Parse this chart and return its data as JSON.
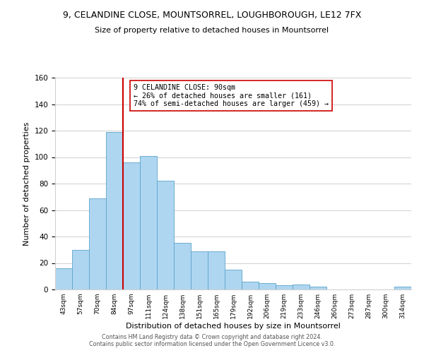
{
  "title": "9, CELANDINE CLOSE, MOUNTSORREL, LOUGHBOROUGH, LE12 7FX",
  "subtitle": "Size of property relative to detached houses in Mountsorrel",
  "xlabel": "Distribution of detached houses by size in Mountsorrel",
  "ylabel": "Number of detached properties",
  "footer_line1": "Contains HM Land Registry data © Crown copyright and database right 2024.",
  "footer_line2": "Contains public sector information licensed under the Open Government Licence v3.0.",
  "bin_labels": [
    "43sqm",
    "57sqm",
    "70sqm",
    "84sqm",
    "97sqm",
    "111sqm",
    "124sqm",
    "138sqm",
    "151sqm",
    "165sqm",
    "179sqm",
    "192sqm",
    "206sqm",
    "219sqm",
    "233sqm",
    "246sqm",
    "260sqm",
    "273sqm",
    "287sqm",
    "300sqm",
    "314sqm"
  ],
  "bar_heights": [
    16,
    30,
    69,
    119,
    96,
    101,
    82,
    35,
    29,
    29,
    15,
    6,
    5,
    3,
    4,
    2,
    0,
    0,
    0,
    0,
    2
  ],
  "bar_color": "#aed6f1",
  "bar_edge_color": "#5ba3c9",
  "vline_x_index": 4,
  "vline_color": "#cc0000",
  "annotation_text": "9 CELANDINE CLOSE: 90sqm\n← 26% of detached houses are smaller (161)\n74% of semi-detached houses are larger (459) →",
  "annotation_box_edgecolor": "#cc0000",
  "ylim": [
    0,
    160
  ],
  "yticks": [
    0,
    20,
    40,
    60,
    80,
    100,
    120,
    140,
    160
  ],
  "background_color": "#ffffff",
  "grid_color": "#d0d0d0"
}
